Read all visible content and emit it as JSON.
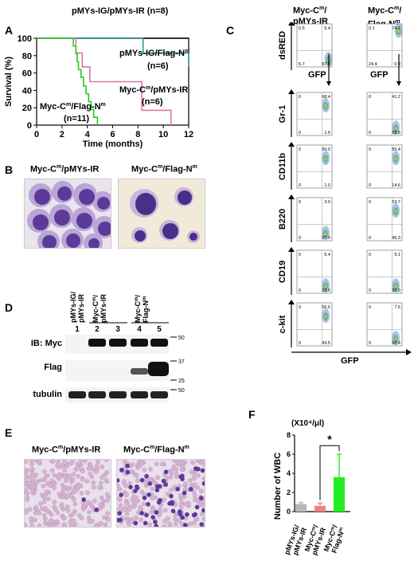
{
  "panels": {
    "A": {
      "label": "A",
      "chart_data": {
        "type": "line",
        "subtype": "kaplan-meier",
        "xlabel": "Time (months)",
        "ylabel": "Survival (%)",
        "xlim": [
          0,
          12
        ],
        "ylim": [
          0,
          100
        ],
        "xticks": [
          "0",
          "2",
          "4",
          "6",
          "8",
          "10",
          "12"
        ],
        "yticks": [
          "0",
          "20",
          "40",
          "60",
          "80",
          "100"
        ],
        "series": [
          {
            "name": "pMYs-IG/pMYs-IR (n=8)",
            "color": "#000000",
            "x": [
              0,
              12
            ],
            "y": [
              100,
              100
            ]
          },
          {
            "name": "pMYs-IG/Flag-Nm (n=6)",
            "color": "#2e9a9a",
            "x": [
              0,
              8.4,
              8.4,
              12,
              12
            ],
            "y": [
              100,
              100,
              83,
              83,
              67
            ]
          },
          {
            "name": "Myc-Cm/pMYs-IR (n=6)",
            "color": "#e070b0",
            "x": [
              0,
              3.1,
              3.1,
              3.6,
              3.6,
              4.2,
              4.2,
              8.3,
              8.3,
              10.6,
              10.6
            ],
            "y": [
              100,
              100,
              83,
              83,
              67,
              67,
              50,
              50,
              17,
              17,
              0
            ]
          },
          {
            "name": "Myc-Cm/Flag-Nm (n=11)",
            "color": "#22cc22",
            "x": [
              0,
              2.9,
              2.9,
              3.1,
              3.1,
              3.2,
              3.2,
              3.3,
              3.3,
              3.5,
              3.5,
              3.7,
              3.7,
              3.9,
              3.9,
              4.1,
              4.1,
              4.3,
              4.3,
              4.5,
              4.5,
              4.8,
              4.8
            ],
            "y": [
              100,
              100,
              91,
              91,
              82,
              82,
              73,
              73,
              64,
              64,
              55,
              55,
              45,
              45,
              36,
              36,
              27,
              27,
              18,
              18,
              9,
              9,
              0
            ]
          }
        ]
      },
      "legend": {
        "s1_a": "pMYs-IG/pMYs-IR (n=8)",
        "s2_a": "pMYs-IG/Flag-N",
        "s2_sup": "m",
        "s2_n": "(n=6)",
        "s3_a": "Myc-C",
        "s3_sup": "m",
        "s3_b": "/pMYs-IR",
        "s3_n": "(n=6)",
        "s4_a": "Myc-C",
        "s4_sup": "m",
        "s4_b": "/Flag-N",
        "s4_sup2": "m",
        "s4_n": "(n=11)"
      }
    },
    "B": {
      "label": "B",
      "left_a": "Myc-C",
      "left_sup": "m",
      "left_b": "/pMYs-IR",
      "right_a": "Myc-C",
      "right_sup": "m",
      "right_b": "/Flag-N",
      "right_sup2": "m"
    },
    "C": {
      "label": "C",
      "col1_a": "Myc-C",
      "col1_sup": "m",
      "col1_b": "/",
      "col1_c": "pMYs-IR",
      "col2_a": "Myc-C",
      "col2_sup": "m",
      "col2_b": "/",
      "col2_c": "Flag-N",
      "col2_sup2": "m",
      "top_ylabel": "dsRED",
      "top_xlabel": "GFP",
      "bottom_xlabel": "GFP",
      "top_left": {
        "ul": "0.5",
        "ur": "6.4",
        "ll": "5.7",
        "lr": "87.5"
      },
      "top_right": {
        "ul": "0.1",
        "ur": "74.7",
        "ll": "24.4",
        "lr": "0.9"
      },
      "rows": [
        {
          "marker": "Gr-1",
          "left": {
            "ul": "0",
            "ur": "98.4",
            "ll": "0",
            "lr": "1.6"
          },
          "right": {
            "ul": "0",
            "ur": "41.2",
            "ll": "0",
            "lr": "58.8"
          }
        },
        {
          "marker": "CD11b",
          "left": {
            "ul": "0",
            "ur": "99.0",
            "ll": "0",
            "lr": "1.0"
          },
          "right": {
            "ul": "0",
            "ur": "85.4",
            "ll": "0",
            "lr": "14.6"
          }
        },
        {
          "marker": "B220",
          "left": {
            "ul": "0",
            "ur": "3.0",
            "ll": "0",
            "lr": "97.0"
          },
          "right": {
            "ul": "0",
            "ur": "53.7",
            "ll": "0",
            "lr": "46.3"
          }
        },
        {
          "marker": "CD19",
          "left": {
            "ul": "0",
            "ur": "6.4",
            "ll": "0",
            "lr": "93.6"
          },
          "right": {
            "ul": "0",
            "ur": "9.1",
            "ll": "0",
            "lr": "90.9"
          }
        },
        {
          "marker": "c-kit",
          "left": {
            "ul": "0",
            "ur": "56.5",
            "ll": "0",
            "lr": "43.5"
          },
          "right": {
            "ul": "0",
            "ur": "7.6",
            "ll": "0",
            "lr": "92.4"
          }
        }
      ]
    },
    "D": {
      "label": "D",
      "lanes": [
        "1",
        "2",
        "3",
        "4",
        "5"
      ],
      "group1_a": "pMYs-IG/",
      "group1_b": "pMYs-IR",
      "group2_a": "Myc-C",
      "group2_sup": "m",
      "group2_b": "/",
      "group2_c": "pMYs-IR",
      "group3_a": "Myc-C",
      "group3_sup": "m",
      "group3_b": "/",
      "group3_c": "Flag-N",
      "group3_sup2": "m",
      "rows": [
        "IB: Myc",
        "Flag",
        "tubulin"
      ],
      "mw_50a": "50",
      "mw_37": "37",
      "mw_25": "25",
      "mw_50b": "50"
    },
    "E": {
      "label": "E",
      "left_a": "Myc-C",
      "left_sup": "m",
      "left_b": "/pMYs-IR",
      "right_a": "Myc-C",
      "right_sup": "m",
      "right_b": "/Flag-N",
      "right_sup2": "m"
    },
    "F": {
      "label": "F",
      "unit": "(X10⁴/μl)",
      "sig": "*",
      "chart_data": {
        "type": "bar",
        "ylabel": "Number of WBC",
        "ylim": [
          0,
          8
        ],
        "yticks": [
          "0",
          "2",
          "4",
          "6",
          "8"
        ],
        "categories": [
          "pMYs-IG/pMYs-IR",
          "Myc-Cm/pMYs-IR",
          "Myc-Cm/Flag-Nm"
        ],
        "values": [
          0.8,
          0.6,
          3.6
        ],
        "errors": [
          0.15,
          0.3,
          2.4
        ],
        "colors": [
          "#b8b8b8",
          "#f08080",
          "#22ee22"
        ],
        "significance": "*"
      },
      "cat1_a": "pMYs-IG/",
      "cat1_b": "pMYs-IR",
      "cat2_a": "Myc-C",
      "cat2_sup": "m",
      "cat2_b": "/",
      "cat2_c": "pMYs-IR",
      "cat3_a": "Myc-C",
      "cat3_sup": "m",
      "cat3_b": "/",
      "cat3_c": "Flag-N",
      "cat3_sup2": "m"
    }
  }
}
